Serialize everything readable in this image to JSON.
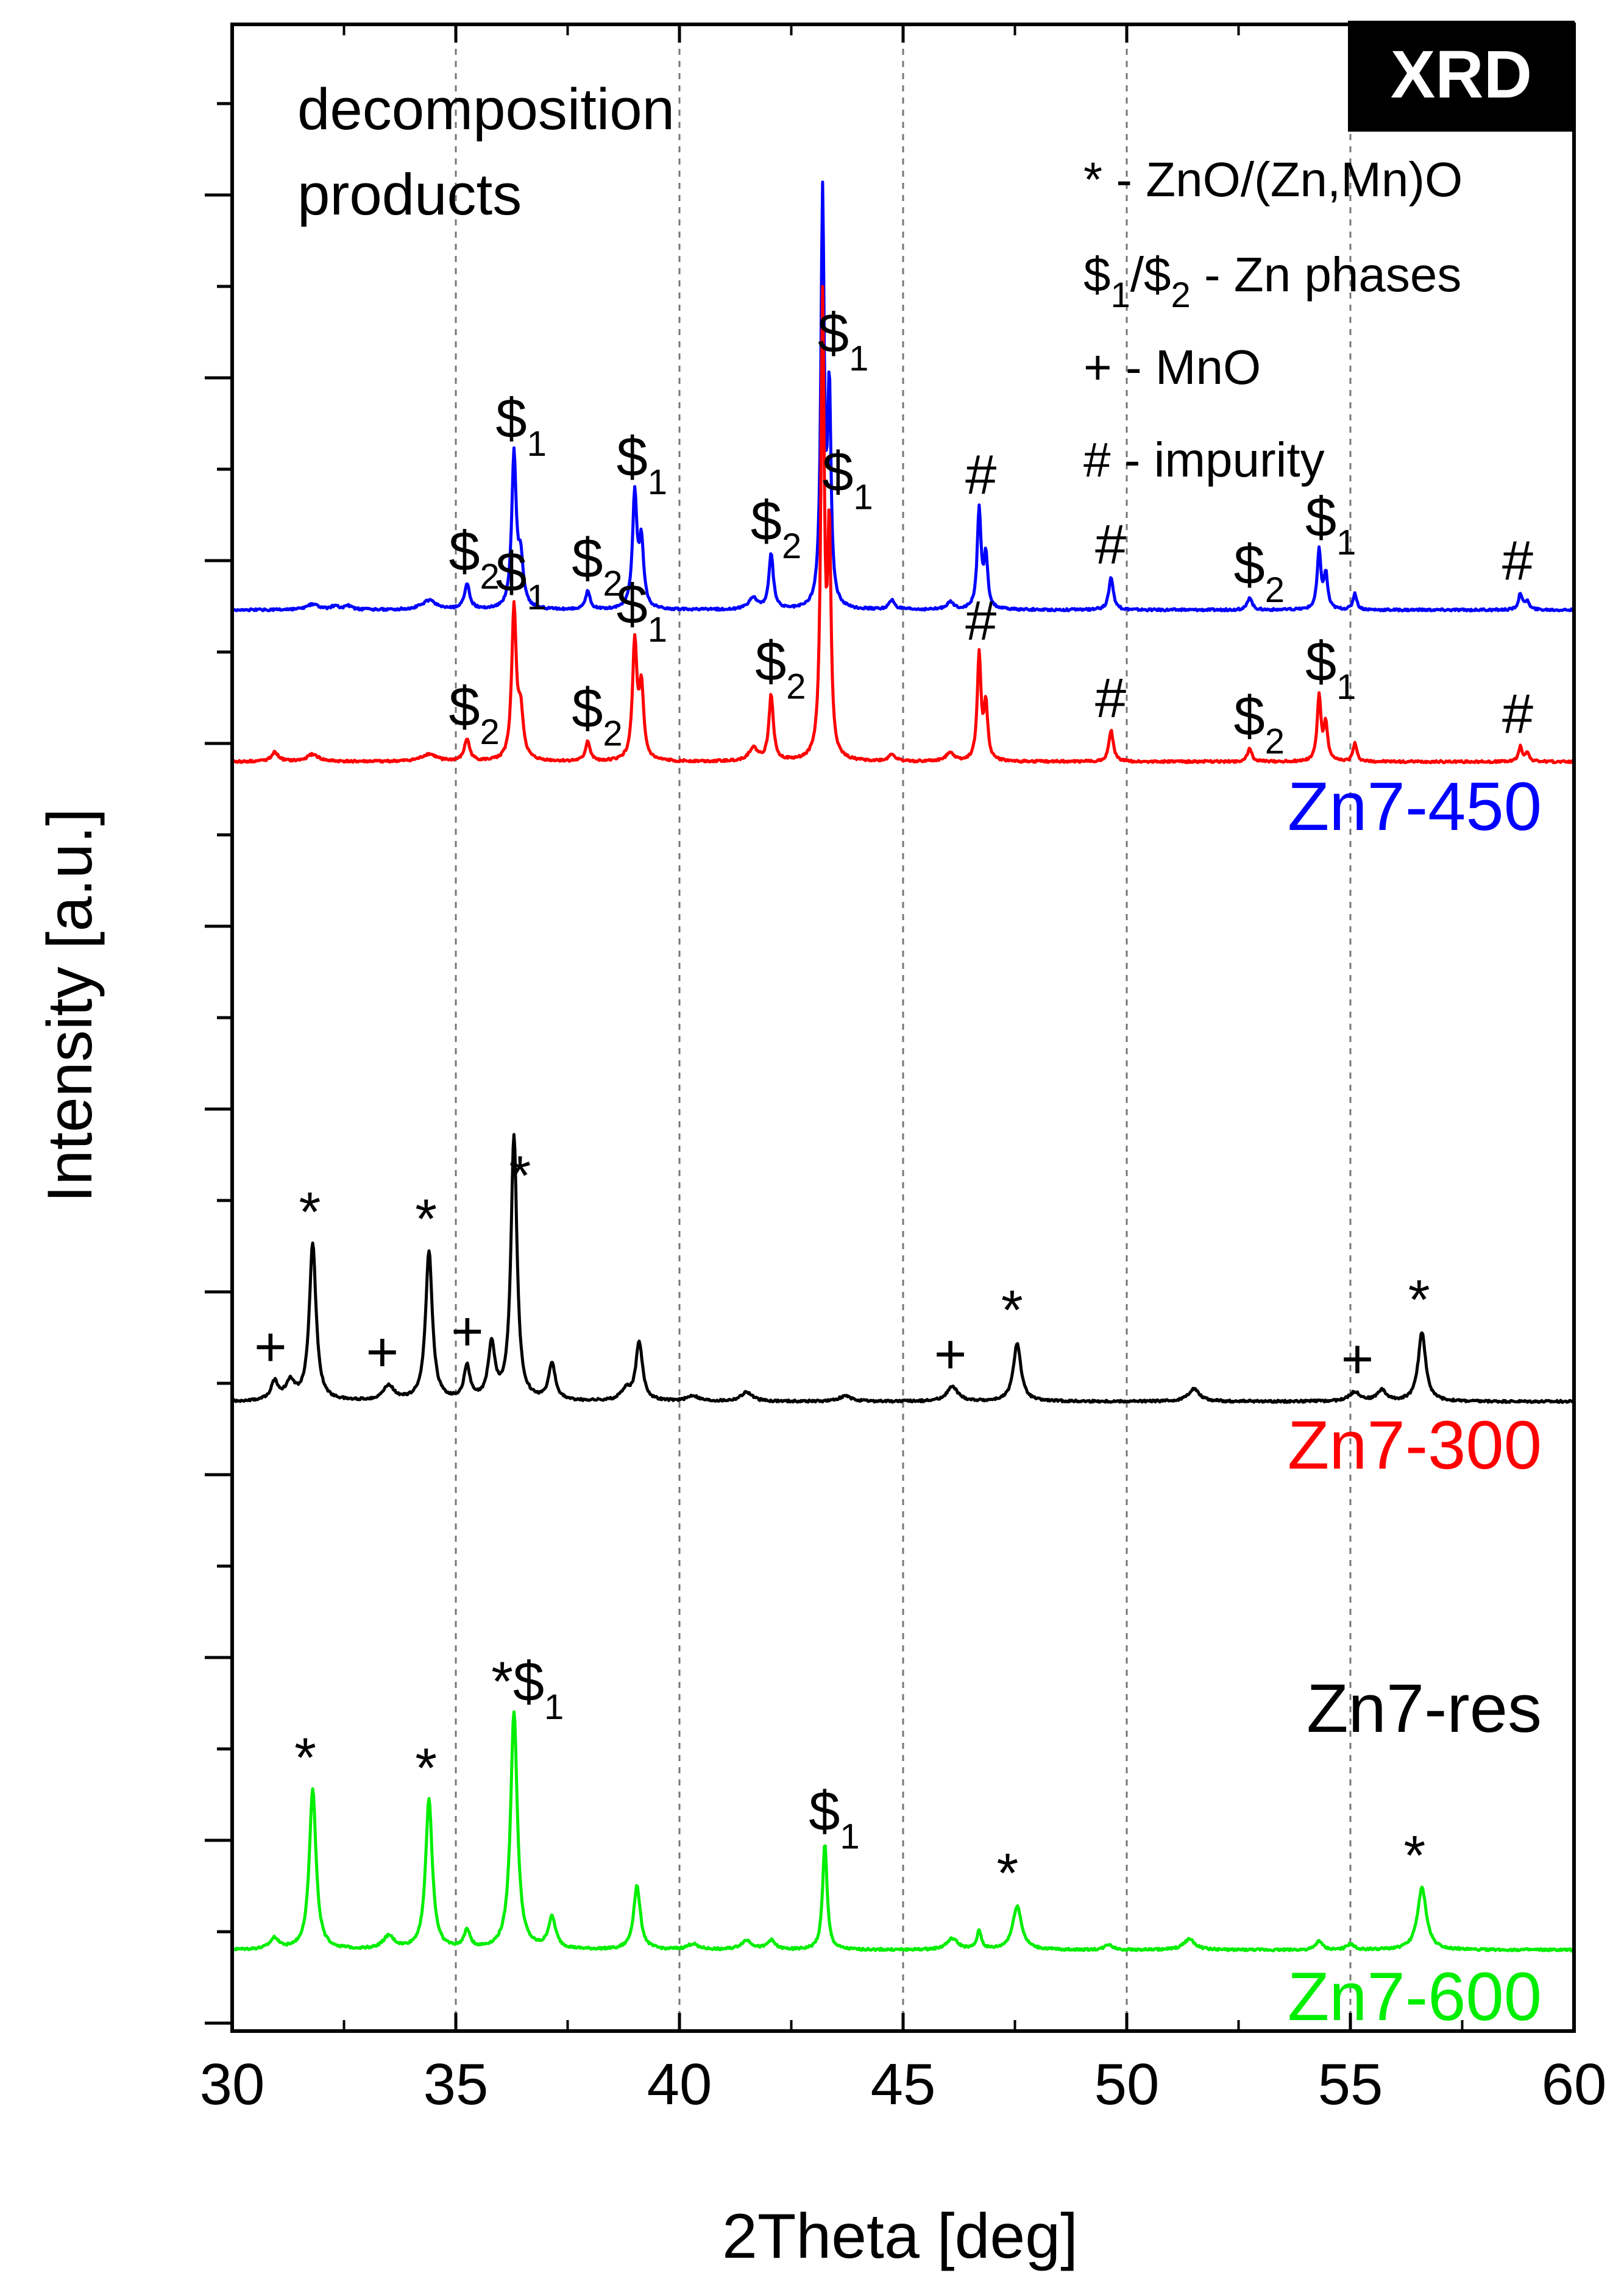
{
  "chart_data": {
    "type": "line",
    "title": "XRD",
    "xlabel": "2Theta [deg]",
    "ylabel": "Intensity [a.u.]",
    "xlim": [
      30,
      60
    ],
    "x_ticks": [
      30,
      35,
      40,
      45,
      50,
      55,
      60
    ],
    "grid_x": [
      35,
      40,
      45,
      50,
      55
    ],
    "note": [
      "decomposition",
      "products"
    ],
    "legend": [
      {
        "symbol": "*",
        "text": " - ZnO/(Zn,Mn)O"
      },
      {
        "symbol": "$",
        "sub1": "1",
        "mid": "/$",
        "sub2": "2",
        "text": " - Zn phases"
      },
      {
        "symbol": "+",
        "text": " - MnO"
      },
      {
        "symbol": "#",
        "text": " - impurity"
      }
    ],
    "series": [
      {
        "name": "Zn7-450",
        "color": "#0000ff",
        "baseline": 0.73,
        "peaks": [
          [
            31.8,
            0.03,
            0.15
          ],
          [
            32.3,
            0.02,
            0.1
          ],
          [
            32.6,
            0.02,
            0.1
          ],
          [
            34.4,
            0.05,
            0.2
          ],
          [
            35.25,
            0.14,
            0.07
          ],
          [
            36.3,
            0.84,
            0.06
          ],
          [
            36.45,
            0.25,
            0.07
          ],
          [
            37.95,
            0.1,
            0.06
          ],
          [
            39.0,
            0.62,
            0.06
          ],
          [
            39.15,
            0.35,
            0.06
          ],
          [
            41.65,
            0.06,
            0.12
          ],
          [
            42.05,
            0.3,
            0.06
          ],
          [
            43.2,
            2.24,
            0.045
          ],
          [
            43.35,
            1.15,
            0.045
          ],
          [
            44.75,
            0.05,
            0.08
          ],
          [
            46.05,
            0.04,
            0.1
          ],
          [
            46.7,
            0.55,
            0.05
          ],
          [
            46.85,
            0.28,
            0.05
          ],
          [
            49.65,
            0.18,
            0.06
          ],
          [
            52.75,
            0.07,
            0.06
          ],
          [
            54.3,
            0.32,
            0.05
          ],
          [
            54.45,
            0.19,
            0.05
          ],
          [
            55.1,
            0.09,
            0.05
          ],
          [
            58.8,
            0.09,
            0.05
          ],
          [
            58.95,
            0.05,
            0.05
          ]
        ]
      },
      {
        "name": "Zn7-300",
        "color": "#ff0000",
        "baseline": -0.1,
        "peaks": [
          [
            30.95,
            0.05,
            0.1
          ],
          [
            31.8,
            0.04,
            0.15
          ],
          [
            34.4,
            0.04,
            0.2
          ],
          [
            35.25,
            0.12,
            0.07
          ],
          [
            36.3,
            0.83,
            0.06
          ],
          [
            36.45,
            0.25,
            0.07
          ],
          [
            37.95,
            0.11,
            0.06
          ],
          [
            39.0,
            0.64,
            0.06
          ],
          [
            39.15,
            0.38,
            0.06
          ],
          [
            41.65,
            0.07,
            0.12
          ],
          [
            42.05,
            0.36,
            0.06
          ],
          [
            43.2,
            2.5,
            0.045
          ],
          [
            43.35,
            1.2,
            0.045
          ],
          [
            44.75,
            0.04,
            0.08
          ],
          [
            46.05,
            0.05,
            0.1
          ],
          [
            46.7,
            0.58,
            0.05
          ],
          [
            46.85,
            0.3,
            0.05
          ],
          [
            49.65,
            0.17,
            0.06
          ],
          [
            52.75,
            0.07,
            0.06
          ],
          [
            54.3,
            0.36,
            0.05
          ],
          [
            54.45,
            0.2,
            0.05
          ],
          [
            55.1,
            0.1,
            0.05
          ],
          [
            58.8,
            0.08,
            0.05
          ],
          [
            58.95,
            0.05,
            0.05
          ]
        ]
      },
      {
        "name": "Zn7-res",
        "color": "#000000",
        "baseline": -3.6,
        "peaks": [
          [
            30.95,
            0.1,
            0.1
          ],
          [
            31.3,
            0.1,
            0.12
          ],
          [
            31.8,
            0.86,
            0.09
          ],
          [
            33.5,
            0.08,
            0.15
          ],
          [
            34.4,
            0.82,
            0.09
          ],
          [
            35.25,
            0.18,
            0.08
          ],
          [
            35.8,
            0.3,
            0.09
          ],
          [
            36.3,
            1.45,
            0.08
          ],
          [
            37.15,
            0.2,
            0.09
          ],
          [
            38.8,
            0.06,
            0.12
          ],
          [
            39.1,
            0.32,
            0.09
          ],
          [
            40.3,
            0.03,
            0.15
          ],
          [
            41.5,
            0.05,
            0.15
          ],
          [
            43.7,
            0.03,
            0.15
          ],
          [
            46.1,
            0.08,
            0.15
          ],
          [
            47.55,
            0.32,
            0.1
          ],
          [
            51.5,
            0.07,
            0.15
          ],
          [
            55.1,
            0.05,
            0.15
          ],
          [
            55.7,
            0.06,
            0.12
          ],
          [
            56.6,
            0.38,
            0.1
          ]
        ]
      },
      {
        "name": "Zn7-600",
        "color": "#00ee00",
        "baseline": -6.6,
        "peaks": [
          [
            30.95,
            0.06,
            0.12
          ],
          [
            31.8,
            0.88,
            0.09
          ],
          [
            33.5,
            0.07,
            0.15
          ],
          [
            34.4,
            0.82,
            0.09
          ],
          [
            35.25,
            0.1,
            0.08
          ],
          [
            36.3,
            1.3,
            0.09
          ],
          [
            37.15,
            0.17,
            0.1
          ],
          [
            39.05,
            0.35,
            0.09
          ],
          [
            40.3,
            0.03,
            0.15
          ],
          [
            41.5,
            0.05,
            0.15
          ],
          [
            42.05,
            0.05,
            0.1
          ],
          [
            43.25,
            0.58,
            0.06
          ],
          [
            46.1,
            0.06,
            0.15
          ],
          [
            46.7,
            0.1,
            0.06
          ],
          [
            47.55,
            0.24,
            0.12
          ],
          [
            49.6,
            0.03,
            0.1
          ],
          [
            51.4,
            0.06,
            0.15
          ],
          [
            54.3,
            0.05,
            0.08
          ],
          [
            55.0,
            0.03,
            0.1
          ],
          [
            56.6,
            0.34,
            0.12
          ]
        ]
      }
    ],
    "annotations": [
      {
        "series": "Zn7-450",
        "items": [
          {
            "x": 35.25,
            "label": "$",
            "sub": "2"
          },
          {
            "x": 36.3,
            "label": "$",
            "sub": "1"
          },
          {
            "x": 38.0,
            "label": "$",
            "sub": "2"
          },
          {
            "x": 39.0,
            "label": "$",
            "sub": "1"
          },
          {
            "x": 42.0,
            "label": "$",
            "sub": "2"
          },
          {
            "x": 43.5,
            "label": "$",
            "sub": "1"
          },
          {
            "x": 46.8,
            "label": "#",
            "sub": ""
          },
          {
            "x": 49.7,
            "label": "#",
            "sub": ""
          },
          {
            "x": 52.8,
            "label": "$",
            "sub": "2"
          },
          {
            "x": 54.4,
            "label": "$",
            "sub": "1"
          },
          {
            "x": 58.8,
            "label": "#",
            "sub": ""
          }
        ]
      },
      {
        "series": "Zn7-300",
        "items": [
          {
            "x": 35.25,
            "label": "$",
            "sub": "2"
          },
          {
            "x": 36.3,
            "label": "$",
            "sub": "1"
          },
          {
            "x": 38.0,
            "label": "$",
            "sub": "2"
          },
          {
            "x": 39.0,
            "label": "$",
            "sub": "1"
          },
          {
            "x": 42.1,
            "label": "$",
            "sub": "2"
          },
          {
            "x": 43.6,
            "label": "$",
            "sub": "1"
          },
          {
            "x": 46.8,
            "label": "#",
            "sub": ""
          },
          {
            "x": 49.7,
            "label": "#",
            "sub": ""
          },
          {
            "x": 52.8,
            "label": "$",
            "sub": "2"
          },
          {
            "x": 54.4,
            "label": "$",
            "sub": "1"
          },
          {
            "x": 58.8,
            "label": "#",
            "sub": ""
          }
        ]
      },
      {
        "series": "Zn7-res",
        "items": [
          {
            "x": 30.9,
            "label": "+",
            "sub": ""
          },
          {
            "x": 31.9,
            "label": "*",
            "sub": ""
          },
          {
            "x": 33.4,
            "label": "+",
            "sub": ""
          },
          {
            "x": 34.5,
            "label": "*",
            "sub": ""
          },
          {
            "x": 35.3,
            "label": "+",
            "sub": ""
          },
          {
            "x": 36.6,
            "label": "*",
            "sub": ""
          },
          {
            "x": 46.1,
            "label": "+",
            "sub": ""
          },
          {
            "x": 47.6,
            "label": "*",
            "sub": ""
          },
          {
            "x": 55.2,
            "label": "+",
            "sub": ""
          },
          {
            "x": 56.7,
            "label": "*",
            "sub": ""
          }
        ]
      },
      {
        "series": "Zn7-600",
        "items": [
          {
            "x": 31.8,
            "label": "*",
            "sub": ""
          },
          {
            "x": 34.5,
            "label": "*",
            "sub": ""
          },
          {
            "x": 36.2,
            "label": "*$",
            "sub": "1"
          },
          {
            "x": 43.3,
            "label": "$",
            "sub": "1"
          },
          {
            "x": 47.5,
            "label": "*",
            "sub": ""
          },
          {
            "x": 56.6,
            "label": "*",
            "sub": ""
          }
        ]
      }
    ]
  }
}
